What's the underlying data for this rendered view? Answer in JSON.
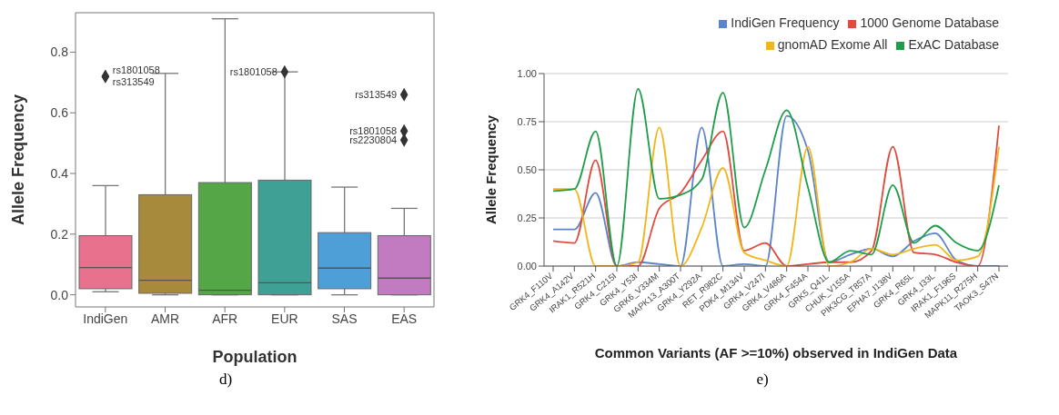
{
  "chart_data": [
    {
      "type": "box",
      "xlabel": "Population",
      "ylabel": "Allele Frequency",
      "categories": [
        "IndiGen",
        "AMR",
        "AFR",
        "EUR",
        "SAS",
        "EAS"
      ],
      "colors": [
        "#e8718d",
        "#a88a3c",
        "#55a646",
        "#3fa096",
        "#4e9ed8",
        "#c27ac0"
      ],
      "boxes": [
        {
          "low": 0.01,
          "q1": 0.02,
          "median": 0.09,
          "q3": 0.195,
          "high": 0.36,
          "outliers": [
            0.72,
            0.72
          ]
        },
        {
          "low": 0,
          "q1": 0.005,
          "median": 0.048,
          "q3": 0.33,
          "high": 0.73
        },
        {
          "low": 0,
          "q1": 0,
          "median": 0.015,
          "q3": 0.37,
          "high": 0.91
        },
        {
          "low": 0,
          "q1": 0,
          "median": 0.04,
          "q3": 0.378,
          "high": 0.735,
          "outliers": [
            0.735
          ]
        },
        {
          "low": 0,
          "q1": 0.02,
          "median": 0.088,
          "q3": 0.205,
          "high": 0.355
        },
        {
          "low": 0,
          "q1": 0,
          "median": 0.055,
          "q3": 0.195,
          "high": 0.285,
          "outliers": [
            0.66,
            0.54,
            0.51
          ]
        }
      ],
      "ylim": [
        -0.04,
        0.93
      ],
      "yticks": [
        {
          "value": 0,
          "label": "0.0"
        },
        {
          "value": 0.2,
          "label": "0.2"
        },
        {
          "value": 0.4,
          "label": "0.4"
        },
        {
          "value": 0.6,
          "label": "0.6"
        },
        {
          "value": 0.8,
          "label": "0.8"
        }
      ],
      "annotations": [
        "rs1801058",
        "rs313549",
        "rs1801058",
        "rs313549",
        "rs1801058",
        "rs2230804",
        "d)"
      ]
    },
    {
      "type": "line",
      "xlabel": "Common Variants (AF >=10%) observed in IndiGen Data",
      "ylabel": "Allele Frequency",
      "categories": [
        "GRK4_F110V",
        "GRK4_A142V",
        "IRAK1_R521H",
        "GRK4_C215I",
        "GRK4_Y53I",
        "GRK6_V334M",
        "MAPK13_A300T",
        "GRK4_Y292A",
        "RET_R982C",
        "PDK4_M134V",
        "GRK4_V247I",
        "GRK4_V486A",
        "GRK4_F454A",
        "GRK5_Q41L",
        "CHUK_V155A",
        "PIK3CG_T857A",
        "EPHA7_I138V",
        "GRK4_R65L",
        "GRK4_I33L",
        "IRAK1_F196S",
        "MAPK11_R275H",
        "TAOK3_S47N"
      ],
      "series": [
        {
          "name": "IndiGen Frequency",
          "color": "#5b84c9",
          "values": [
            0.19,
            0.19,
            0.38,
            0,
            0.02,
            0.01,
            0,
            0.72,
            0,
            0.01,
            0,
            0.78,
            0.6,
            0.02,
            0.06,
            0.09,
            0.05,
            0.13,
            0.17,
            0.03,
            0,
            0
          ]
        },
        {
          "name": "1000 Genome Database",
          "color": "#e04b3f",
          "values": [
            0.13,
            0.12,
            0.55,
            0,
            0,
            0.3,
            0.38,
            0.55,
            0.7,
            0.08,
            0.12,
            0,
            0.01,
            0.02,
            0.02,
            0.08,
            0.62,
            0.07,
            0.06,
            0.02,
            0,
            0.73
          ]
        },
        {
          "name": "gnomAD Exome All",
          "color": "#f2b61d",
          "values": [
            0.4,
            0.4,
            0,
            0,
            0.02,
            0.72,
            0,
            0.2,
            0.51,
            0.07,
            0.03,
            0,
            0.62,
            0,
            0.02,
            0.09,
            0.06,
            0.09,
            0.11,
            0.03,
            0.05,
            0.62
          ]
        },
        {
          "name": "ExAC Database",
          "color": "#1f9e4a",
          "values": [
            0.39,
            0.4,
            0.7,
            0,
            0.92,
            0.35,
            0.37,
            0.45,
            0.9,
            0.2,
            0.5,
            0.81,
            0.41,
            0.02,
            0.08,
            0.06,
            0.42,
            0.12,
            0.21,
            0.12,
            0.08,
            0.42
          ]
        }
      ],
      "ylim": [
        0,
        1
      ],
      "yticks": [
        {
          "value": 0,
          "label": "0.00"
        },
        {
          "value": 0.25,
          "label": "0.25"
        },
        {
          "value": 0.5,
          "label": "0.50"
        },
        {
          "value": 0.75,
          "label": "0.75"
        },
        {
          "value": 1,
          "label": "1.00"
        }
      ],
      "grid": "y",
      "legend": "top right",
      "marker": "none",
      "line_style": "solid",
      "annotations": [
        "e)"
      ]
    }
  ]
}
